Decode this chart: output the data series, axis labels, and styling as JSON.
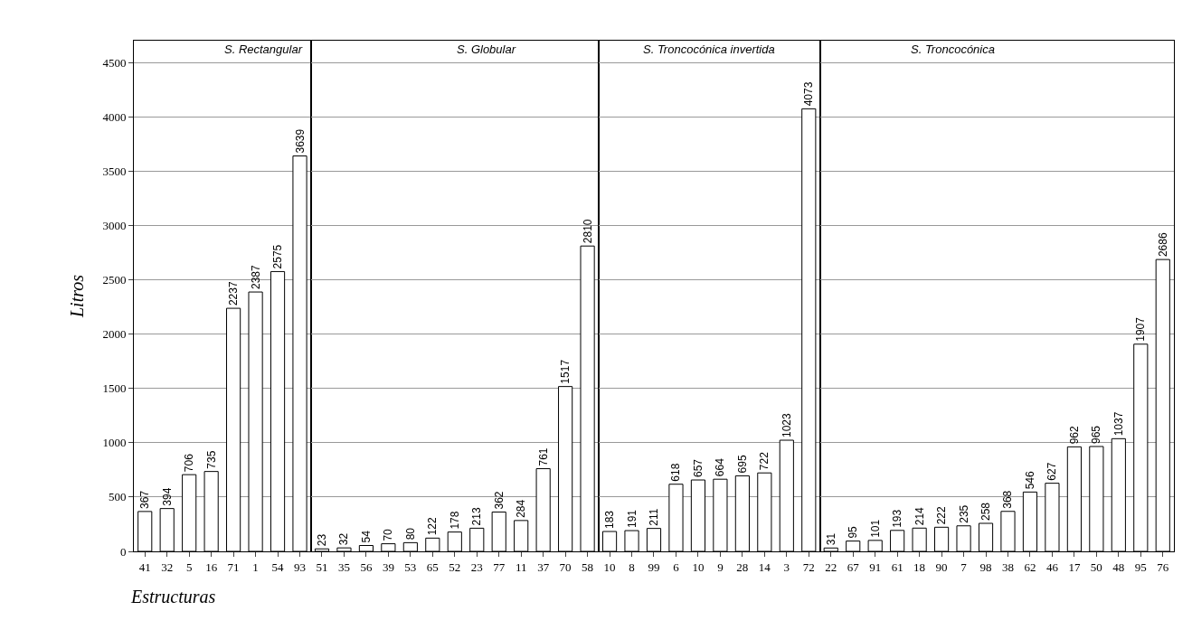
{
  "chart_data": [
    {
      "type": "bar",
      "title": "S. Rectangular",
      "xlabel": "Estructuras",
      "ylabel": "Litros",
      "categories": [
        "41",
        "32",
        "5",
        "16",
        "71",
        "1",
        "54",
        "93"
      ],
      "values": [
        367,
        394,
        706,
        735,
        2237,
        2387,
        2575,
        3639
      ],
      "color": "#ffffff",
      "ylim": [
        0,
        4700
      ],
      "yticks": [
        0,
        500,
        1000,
        1500,
        2000,
        2500,
        3000,
        3500,
        4000,
        4500
      ],
      "grid": "y",
      "data_labels": true
    },
    {
      "type": "bar",
      "title": "S. Globular",
      "categories": [
        "51",
        "35",
        "56",
        "39",
        "53",
        "65",
        "52",
        "23",
        "77",
        "11",
        "37",
        "70",
        "58"
      ],
      "values": [
        23,
        32,
        54,
        70,
        80,
        122,
        178,
        213,
        362,
        284,
        761,
        1517,
        2810
      ],
      "color": "#ffffff",
      "ylim": [
        0,
        4700
      ],
      "yticks": [
        0,
        500,
        1000,
        1500,
        2000,
        2500,
        3000,
        3500,
        4000,
        4500
      ],
      "grid": "y",
      "data_labels": true,
      "tick_labels": "x"
    },
    {
      "type": "bar",
      "title": "S. Troncocónica invertida",
      "categories": [
        "10",
        "8",
        "99",
        "6",
        "10",
        "9",
        "28",
        "14",
        "3",
        "72"
      ],
      "values": [
        183,
        191,
        211,
        618,
        657,
        664,
        695,
        722,
        1023,
        4073
      ],
      "color": "#ffffff",
      "ylim": [
        0,
        4700
      ],
      "yticks": [
        0,
        500,
        1000,
        1500,
        2000,
        2500,
        3000,
        3500,
        4000,
        4500
      ],
      "grid": "y",
      "data_labels": true,
      "tick_labels": "x"
    },
    {
      "type": "bar",
      "title": "S. Troncocónica",
      "categories": [
        "22",
        "67",
        "91",
        "61",
        "18",
        "90",
        "7",
        "98",
        "38",
        "62",
        "46",
        "17",
        "50",
        "48",
        "95",
        "76"
      ],
      "values": [
        31,
        95,
        101,
        193,
        214,
        222,
        235,
        258,
        368,
        546,
        627,
        962,
        965,
        1037,
        1907,
        2686
      ],
      "color": "#ffffff",
      "ylim": [
        0,
        4700
      ],
      "yticks": [
        0,
        500,
        1000,
        1500,
        2000,
        2500,
        3000,
        3500,
        4000,
        4500
      ],
      "grid": "y",
      "data_labels": true,
      "tick_labels": "x"
    }
  ]
}
